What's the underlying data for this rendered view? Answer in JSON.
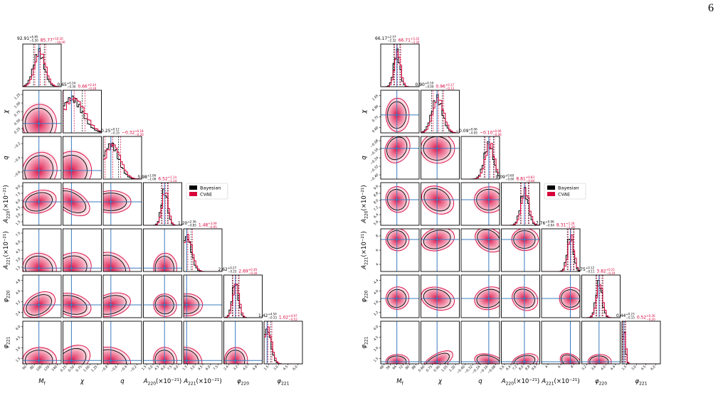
{
  "page_number": "6",
  "plots": [
    {
      "legend": [
        "Bayesian",
        "CVAE"
      ],
      "parameters": [
        {
          "symbol": "M",
          "subscript": "f"
        },
        {
          "symbol": "χ"
        },
        {
          "symbol": "q"
        },
        {
          "symbol": "A",
          "subscript": "220",
          "unit": "(×10",
          "exponent": "−21",
          "unit_close": ")"
        },
        {
          "symbol": "A",
          "subscript": "221",
          "unit": "(×10",
          "exponent": "−21",
          "unit_close": ")"
        },
        {
          "symbol": "φ",
          "subscript": "220"
        },
        {
          "symbol": "φ",
          "subscript": "221"
        }
      ],
      "diagonal_titles": [
        {
          "bayesian": {
            "value": "92.91",
            "plus": "+6.85",
            "minus": "−5.50"
          },
          "cvae": {
            "value": "85.77",
            "plus": "+10.20",
            "minus": "−10.00"
          }
        },
        {
          "bayesian": {
            "value": "0.65",
            "plus": "+0.34",
            "minus": "−0.30"
          },
          "cvae": {
            "value": "0.66",
            "plus": "+0.34",
            "minus": "−0.30"
          }
        },
        {
          "bayesian": {
            "value": "−0.25",
            "plus": "+0.12",
            "minus": "−0.15"
          },
          "cvae": {
            "value": "−0.32",
            "plus": "+0.18",
            "minus": "−0.20"
          }
        },
        {
          "bayesian": {
            "value": "5.98",
            "plus": "+1.06",
            "minus": "−1.06"
          },
          "cvae": {
            "value": "6.52",
            "plus": "+1.14",
            "minus": "−1.14"
          }
        },
        {
          "bayesian": {
            "value": "1.20",
            "plus": "+2.36",
            "minus": "−0.85"
          },
          "cvae": {
            "value": "1.48",
            "plus": "+3.09",
            "minus": "−0.95"
          }
        },
        {
          "bayesian": {
            "value": "2.62",
            "plus": "+0.27",
            "minus": "−0.25"
          },
          "cvae": {
            "value": "2.69",
            "plus": "+0.39",
            "minus": "−0.30"
          }
        },
        {
          "bayesian": {
            "value": "1.42",
            "plus": "+4.50",
            "minus": "−0.33"
          },
          "cvae": {
            "value": "1.02",
            "plus": "+4.97",
            "minus": "−0.52"
          }
        }
      ],
      "x_ticks": [
        [
          "60",
          "80",
          "100",
          "120",
          "140"
        ],
        [
          "0.25",
          "0.50",
          "0.75",
          "1.00",
          "1.25"
        ],
        [
          "−0.8",
          "−0.6",
          "−0.4",
          "−0.2"
        ],
        [
          "1.5",
          "3.0",
          "4.5",
          "6.0",
          "7.5",
          "9.0"
        ],
        [
          "1.5",
          "3.0",
          "4.5",
          "6.0",
          "7.5"
        ],
        [
          "2.4",
          "3.2",
          "4.0",
          "4.8"
        ],
        [
          "1.5",
          "3.0",
          "4.5",
          "6.0"
        ]
      ],
      "y_ticks": [
        [],
        [
          "0.25",
          "0.50",
          "0.75",
          "1.00",
          "1.25"
        ],
        [
          "−0.6",
          "−0.4",
          "−0.2"
        ],
        [
          "1.5",
          "3.0",
          "4.5",
          "6.0",
          "7.5",
          "9.0"
        ],
        [
          "1.5",
          "3.0",
          "4.5",
          "6.0",
          "7.5"
        ],
        [
          "2.4",
          "3.2",
          "4.0",
          "4.8"
        ],
        [
          "1.5",
          "3.0",
          "4.5",
          "6.0"
        ]
      ]
    },
    {
      "legend": [
        "Bayesian",
        "CVAE"
      ],
      "parameters": [
        {
          "symbol": "M",
          "subscript": "f"
        },
        {
          "symbol": "χ"
        },
        {
          "symbol": "q"
        },
        {
          "symbol": "A",
          "subscript": "220",
          "unit": "(×10",
          "exponent": "−21",
          "unit_close": ")"
        },
        {
          "symbol": "A",
          "subscript": "221",
          "unit": "(×10",
          "exponent": "−21",
          "unit_close": ")"
        },
        {
          "symbol": "φ",
          "subscript": "220"
        },
        {
          "symbol": "φ",
          "subscript": "221"
        }
      ],
      "diagonal_titles": [
        {
          "bayesian": {
            "value": "66.17",
            "plus": "+2.57",
            "minus": "−2.32"
          },
          "cvae": {
            "value": "66.71",
            "plus": "+3.32",
            "minus": "−3.20"
          }
        },
        {
          "bayesian": {
            "value": "0.90",
            "plus": "+0.10",
            "minus": "−0.09"
          },
          "cvae": {
            "value": "0.96",
            "plus": "+0.17",
            "minus": "−0.13"
          }
        },
        {
          "bayesian": {
            "value": "−0.09",
            "plus": "+0.06",
            "minus": "−0.05"
          },
          "cvae": {
            "value": "−0.10",
            "plus": "+0.06",
            "minus": "−0.06"
          }
        },
        {
          "bayesian": {
            "value": "9.09",
            "plus": "+0.60",
            "minus": "−0.60"
          },
          "cvae": {
            "value": "8.81",
            "plus": "+0.83",
            "minus": "−0.84"
          }
        },
        {
          "bayesian": {
            "value": "7.76",
            "plus": "+0.96",
            "minus": "−0.94"
          },
          "cvae": {
            "value": "8.31",
            "plus": "+1.26",
            "minus": "−1.28"
          }
        },
        {
          "bayesian": {
            "value": "3.75",
            "plus": "+0.12",
            "minus": "−0.11"
          },
          "cvae": {
            "value": "3.82",
            "plus": "+0.21",
            "minus": "−0.19"
          }
        },
        {
          "bayesian": {
            "value": "0.44",
            "plus": "+0.23",
            "minus": "−0.15"
          },
          "cvae": {
            "value": "0.52",
            "plus": "+0.36",
            "minus": "−0.20"
          }
        }
      ],
      "x_ticks": [
        [
          "48",
          "56",
          "64",
          "72",
          "80",
          "88"
        ],
        [
          "0.60",
          "0.75",
          "0.90",
          "1.05",
          "1.20"
        ],
        [
          "−0.40",
          "−0.32",
          "−0.24",
          "−0.16",
          "−0.08"
        ],
        [
          "5.6",
          "6.4",
          "7.2",
          "8.0",
          "8.8",
          "9.6"
        ],
        [
          "4",
          "6",
          "8"
        ],
        [
          "3.2",
          "3.6",
          "4.0",
          "4.4"
        ],
        [
          "1.5",
          "3.0",
          "4.5",
          "6.0"
        ]
      ],
      "y_ticks": [
        [],
        [
          "0.60",
          "0.75",
          "0.90",
          "1.05"
        ],
        [
          "−0.40",
          "−0.32",
          "−0.24",
          "−0.16",
          "−0.08"
        ],
        [
          "5.6",
          "6.4",
          "7.2",
          "8.0",
          "8.8",
          "9.6"
        ],
        [
          "4",
          "6",
          "8"
        ],
        [
          "3.2",
          "3.6",
          "4.0",
          "4.4"
        ],
        [
          "1.5",
          "3.0",
          "4.5",
          "6.0"
        ]
      ]
    }
  ]
}
